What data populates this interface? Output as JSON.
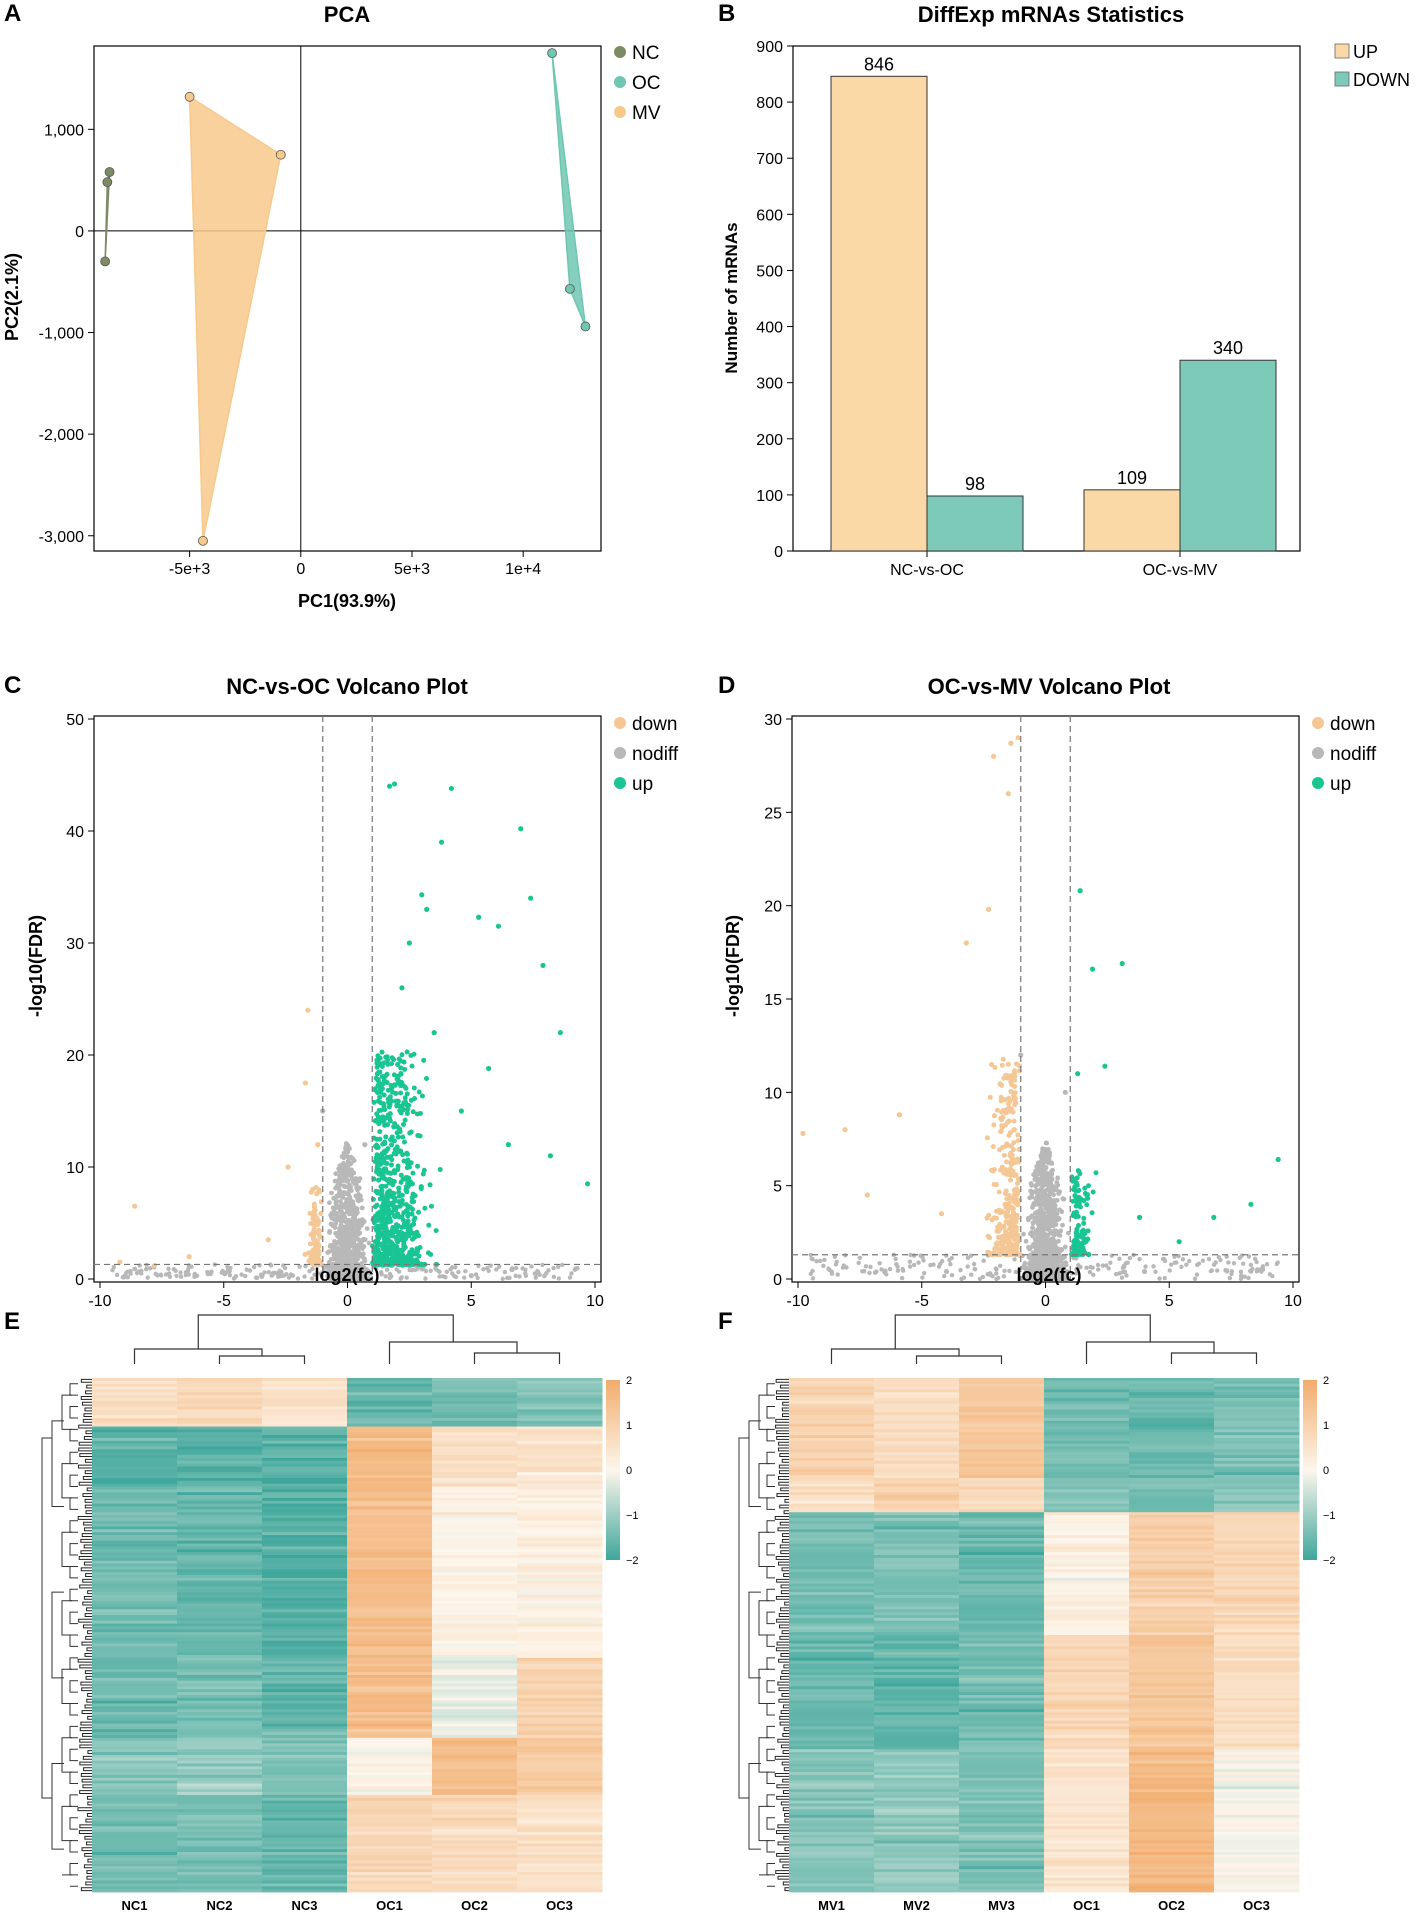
{
  "colors": {
    "NC": "#7d8a63",
    "OC": "#6fc7b2",
    "MV": "#f7c98b",
    "up_bar": "#fbd9a6",
    "down_bar": "#7ecab9",
    "down_pt": "#f4c795",
    "nodiff_pt": "#b8b8b8",
    "up_pt": "#19c592",
    "heat_high": "#f2ac6c",
    "heat_mid": "#fdf6ec",
    "heat_low": "#3ea69b"
  },
  "panels": {
    "A": "A",
    "B": "B",
    "C": "C",
    "D": "D",
    "E": "E",
    "F": "F"
  },
  "chart_data": [
    {
      "id": "A",
      "type": "scatter",
      "title": "PCA",
      "xlabel": "PC1(93.9%)",
      "ylabel": "PC2(2.1%)",
      "xlim": [
        -9300,
        13500
      ],
      "ylim": [
        -3150,
        1820
      ],
      "xticks": [
        {
          "v": -5000,
          "label": "-5e+3"
        },
        {
          "v": 0,
          "label": "0"
        },
        {
          "v": 5000,
          "label": "5e+3"
        },
        {
          "v": 10000,
          "label": "1e+4"
        }
      ],
      "yticks": [
        {
          "v": 1000,
          "label": "1,000"
        },
        {
          "v": 0,
          "label": "0"
        },
        {
          "v": -1000,
          "label": "-1,000"
        },
        {
          "v": -2000,
          "label": "-2,000"
        },
        {
          "v": -3000,
          "label": "-3,000"
        }
      ],
      "legend": [
        "NC",
        "OC",
        "MV"
      ],
      "series": [
        {
          "name": "NC",
          "points": [
            [
              -8800,
              -300
            ],
            [
              -8700,
              480
            ],
            [
              -8600,
              580
            ]
          ]
        },
        {
          "name": "OC",
          "points": [
            [
              11300,
              1750
            ],
            [
              12100,
              -570
            ],
            [
              12800,
              -940
            ]
          ]
        },
        {
          "name": "MV",
          "points": [
            [
              -5000,
              1320
            ],
            [
              -900,
              750
            ],
            [
              -4400,
              -3050
            ]
          ]
        }
      ]
    },
    {
      "id": "B",
      "type": "bar",
      "title": "DiffExp mRNAs Statistics",
      "ylabel": "Number of mRNAs",
      "xlabel": "",
      "categories": [
        "NC-vs-OC",
        "OC-vs-MV"
      ],
      "ylim": [
        0,
        900
      ],
      "yticks": [
        0,
        100,
        200,
        300,
        400,
        500,
        600,
        700,
        800,
        900
      ],
      "legend": [
        "UP",
        "DOWN"
      ],
      "series": [
        {
          "name": "UP",
          "values": [
            846,
            109
          ]
        },
        {
          "name": "DOWN",
          "values": [
            98,
            340
          ]
        }
      ]
    },
    {
      "id": "C",
      "type": "scatter",
      "title": "NC-vs-OC Volcano Plot",
      "xlabel": "log2(fc)",
      "ylabel": "-log10(FDR)",
      "xlim": [
        -10,
        10
      ],
      "ylim": [
        0,
        50
      ],
      "xticks": [
        {
          "v": -10,
          "label": "-10"
        },
        {
          "v": -5,
          "label": "-5"
        },
        {
          "v": 0,
          "label": "0"
        },
        {
          "v": 5,
          "label": "5"
        },
        {
          "v": 10,
          "label": "10"
        }
      ],
      "yticks": [
        {
          "v": 0,
          "label": "0"
        },
        {
          "v": 10,
          "label": "10"
        },
        {
          "v": 20,
          "label": "20"
        },
        {
          "v": 30,
          "label": "30"
        },
        {
          "v": 40,
          "label": "40"
        },
        {
          "v": 50,
          "label": "50"
        }
      ],
      "legend": [
        "down",
        "nodiff",
        "up"
      ],
      "threshold_x": [
        -1,
        1
      ],
      "threshold_y": 1.3,
      "series": [
        {
          "name": "down",
          "points": [
            [
              -8.6,
              6.5
            ],
            [
              -1.6,
              24
            ],
            [
              -1.7,
              17.5
            ],
            [
              -2.4,
              10
            ],
            [
              -3.2,
              3.5
            ],
            [
              -6.4,
              2
            ],
            [
              -9.2,
              1.5
            ],
            [
              -7.8,
              1.2
            ],
            [
              -1.4,
              8
            ],
            [
              -1.2,
              12
            ]
          ]
        },
        {
          "name": "up",
          "points": [
            [
              1.7,
              44
            ],
            [
              1.9,
              44.2
            ],
            [
              4.2,
              43.8
            ],
            [
              7,
              40.2
            ],
            [
              3.8,
              39
            ],
            [
              7.4,
              34
            ],
            [
              3,
              34.3
            ],
            [
              5.3,
              32.3
            ],
            [
              6.1,
              31.5
            ],
            [
              7.9,
              28
            ],
            [
              3.2,
              33
            ],
            [
              2.5,
              30
            ],
            [
              8.6,
              22
            ],
            [
              9.7,
              8.5
            ],
            [
              8.2,
              11
            ],
            [
              4.6,
              15
            ],
            [
              5.7,
              18.8
            ],
            [
              2.2,
              26
            ],
            [
              3.5,
              22
            ],
            [
              6.5,
              12
            ]
          ]
        },
        {
          "name": "nodiff",
          "points": [
            [
              -1,
              15
            ],
            [
              0.7,
              12
            ],
            [
              -0.3,
              6
            ],
            [
              0.2,
              4
            ],
            [
              -3,
              0.5
            ],
            [
              5,
              0.3
            ]
          ]
        }
      ],
      "counts": {
        "down": 98,
        "up": 846
      }
    },
    {
      "id": "D",
      "type": "scatter",
      "title": "OC-vs-MV Volcano Plot",
      "xlabel": "log2(fc)",
      "ylabel": "-log10(FDR)",
      "xlim": [
        -10,
        10
      ],
      "ylim": [
        0,
        30
      ],
      "xticks": [
        {
          "v": -10,
          "label": "-10"
        },
        {
          "v": -5,
          "label": "-5"
        },
        {
          "v": 0,
          "label": "0"
        },
        {
          "v": 5,
          "label": "5"
        },
        {
          "v": 10,
          "label": "10"
        }
      ],
      "yticks": [
        {
          "v": 0,
          "label": "0"
        },
        {
          "v": 5,
          "label": "5"
        },
        {
          "v": 10,
          "label": "10"
        },
        {
          "v": 15,
          "label": "15"
        },
        {
          "v": 20,
          "label": "20"
        },
        {
          "v": 25,
          "label": "25"
        },
        {
          "v": 30,
          "label": "30"
        }
      ],
      "legend": [
        "down",
        "nodiff",
        "up"
      ],
      "threshold_x": [
        -1,
        1
      ],
      "threshold_y": 1.3,
      "series": [
        {
          "name": "down",
          "points": [
            [
              -1.1,
              29
            ],
            [
              -1.4,
              28.7
            ],
            [
              -2.1,
              28
            ],
            [
              -1.5,
              26
            ],
            [
              -2.3,
              19.8
            ],
            [
              -3.2,
              18
            ],
            [
              -5.9,
              8.8
            ],
            [
              -8.1,
              8
            ],
            [
              -9.8,
              7.8
            ],
            [
              -7.2,
              4.5
            ],
            [
              -4.2,
              3.5
            ]
          ]
        },
        {
          "name": "up",
          "points": [
            [
              1.4,
              20.8
            ],
            [
              3.1,
              16.9
            ],
            [
              1.9,
              16.6
            ],
            [
              2.4,
              11.4
            ],
            [
              1.3,
              11
            ],
            [
              9.4,
              6.4
            ],
            [
              8.3,
              4
            ],
            [
              6.8,
              3.3
            ],
            [
              5.4,
              2
            ],
            [
              3.8,
              3.3
            ]
          ]
        },
        {
          "name": "nodiff",
          "points": [
            [
              -1,
              12
            ],
            [
              0.8,
              10
            ],
            [
              0.2,
              5
            ],
            [
              -0.5,
              3
            ],
            [
              4,
              0.4
            ],
            [
              -4,
              0.4
            ]
          ]
        }
      ],
      "counts": {
        "down": 340,
        "up": 109
      }
    },
    {
      "id": "E",
      "type": "heatmap",
      "columns": [
        "NC1",
        "NC2",
        "NC3",
        "OC1",
        "OC2",
        "OC3"
      ],
      "colorbar": {
        "ticks": [
          "2",
          "1",
          "0",
          "−1",
          "−2"
        ],
        "range": [
          -2,
          2
        ]
      }
    },
    {
      "id": "F",
      "type": "heatmap",
      "columns": [
        "MV1",
        "MV2",
        "MV3",
        "OC1",
        "OC2",
        "OC3"
      ],
      "colorbar": {
        "ticks": [
          "2",
          "1",
          "0",
          "−1",
          "−2"
        ],
        "range": [
          -2,
          2
        ]
      }
    }
  ]
}
